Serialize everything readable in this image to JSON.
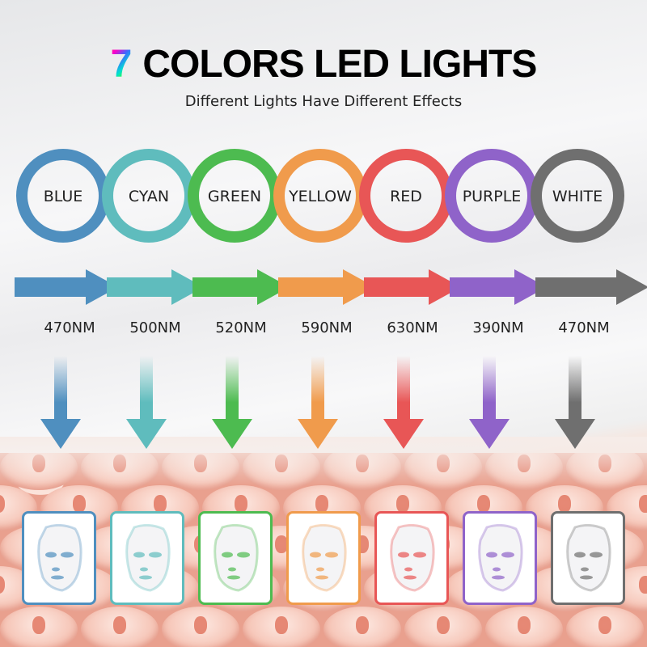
{
  "header": {
    "title_number": "7",
    "title_text": "COLORS LED LIGHTS",
    "subtitle": "Different Lights Have Different Effects"
  },
  "lights": [
    {
      "name": "BLUE",
      "wavelength": "470NM",
      "color": "#4f8fbf"
    },
    {
      "name": "CYAN",
      "wavelength": "500NM",
      "color": "#5fbcbd"
    },
    {
      "name": "GREEN",
      "wavelength": "520NM",
      "color": "#4dbb50"
    },
    {
      "name": "YELLOW",
      "wavelength": "590NM",
      "color": "#f09b4c"
    },
    {
      "name": "RED",
      "wavelength": "630NM",
      "color": "#e85656"
    },
    {
      "name": "PURPLE",
      "wavelength": "390NM",
      "color": "#8f63c9"
    },
    {
      "name": "WHITE",
      "wavelength": "470NM",
      "color": "#6f6f6f"
    }
  ]
}
